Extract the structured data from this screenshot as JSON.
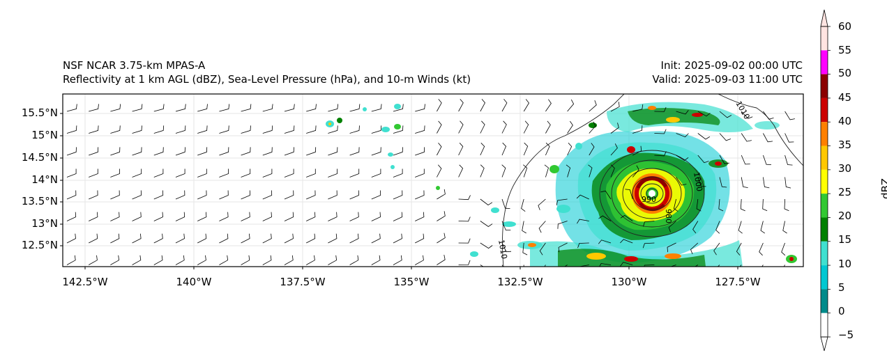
{
  "title": {
    "line1": "NSF NCAR 3.75-km MPAS-A",
    "line2": "Reflectivity at 1 km AGL (dBZ), Sea-Level Pressure (hPa), and 10-m Winds (kt)",
    "init": "Init: 2025-09-02 00:00 UTC",
    "valid": "Valid: 2025-09-03 11:00 UTC"
  },
  "map": {
    "lat_ticks": [
      "15.5°N",
      "15°N",
      "14.5°N",
      "14°N",
      "13.5°N",
      "13°N",
      "12.5°N"
    ],
    "lon_ticks": [
      "142.5°W",
      "140°W",
      "137.5°W",
      "135°W",
      "132.5°W",
      "130°W",
      "127.5°W"
    ],
    "lat_values": [
      15.5,
      15.0,
      14.5,
      14.0,
      13.5,
      13.0,
      12.5
    ],
    "lon_values": [
      -142.5,
      -140.0,
      -137.5,
      -135.0,
      -132.5,
      -130.0,
      -127.5
    ],
    "lon_range": [
      -143.0,
      -126.0
    ],
    "lat_range": [
      12.0,
      16.0
    ],
    "storm_center": {
      "lon": -129.5,
      "lat": 13.8
    },
    "contour_labels": [
      "1010",
      "1010",
      "1010",
      "1000",
      "990",
      "980"
    ]
  },
  "colorbar": {
    "label": "dBZ",
    "ticks": [
      "60",
      "55",
      "50",
      "45",
      "40",
      "35",
      "30",
      "25",
      "20",
      "15",
      "10",
      "5",
      "0",
      "−5"
    ],
    "bins": [
      {
        "from": 55,
        "to": 60,
        "color": "#ffe4e1"
      },
      {
        "from": 50,
        "to": 55,
        "color": "#ff00ff"
      },
      {
        "from": 45,
        "to": 50,
        "color": "#8b0000"
      },
      {
        "from": 40,
        "to": 45,
        "color": "#cc0000"
      },
      {
        "from": 35,
        "to": 40,
        "color": "#ff8000"
      },
      {
        "from": 30,
        "to": 35,
        "color": "#ffc800"
      },
      {
        "from": 25,
        "to": 30,
        "color": "#ffff00"
      },
      {
        "from": 20,
        "to": 25,
        "color": "#32c832"
      },
      {
        "from": 15,
        "to": 20,
        "color": "#008000"
      },
      {
        "from": 10,
        "to": 15,
        "color": "#40e0d0"
      },
      {
        "from": 5,
        "to": 10,
        "color": "#00c8d2"
      },
      {
        "from": 0,
        "to": 5,
        "color": "#008b8b"
      },
      {
        "from": -5,
        "to": 0,
        "color": "#ffffff"
      }
    ]
  }
}
